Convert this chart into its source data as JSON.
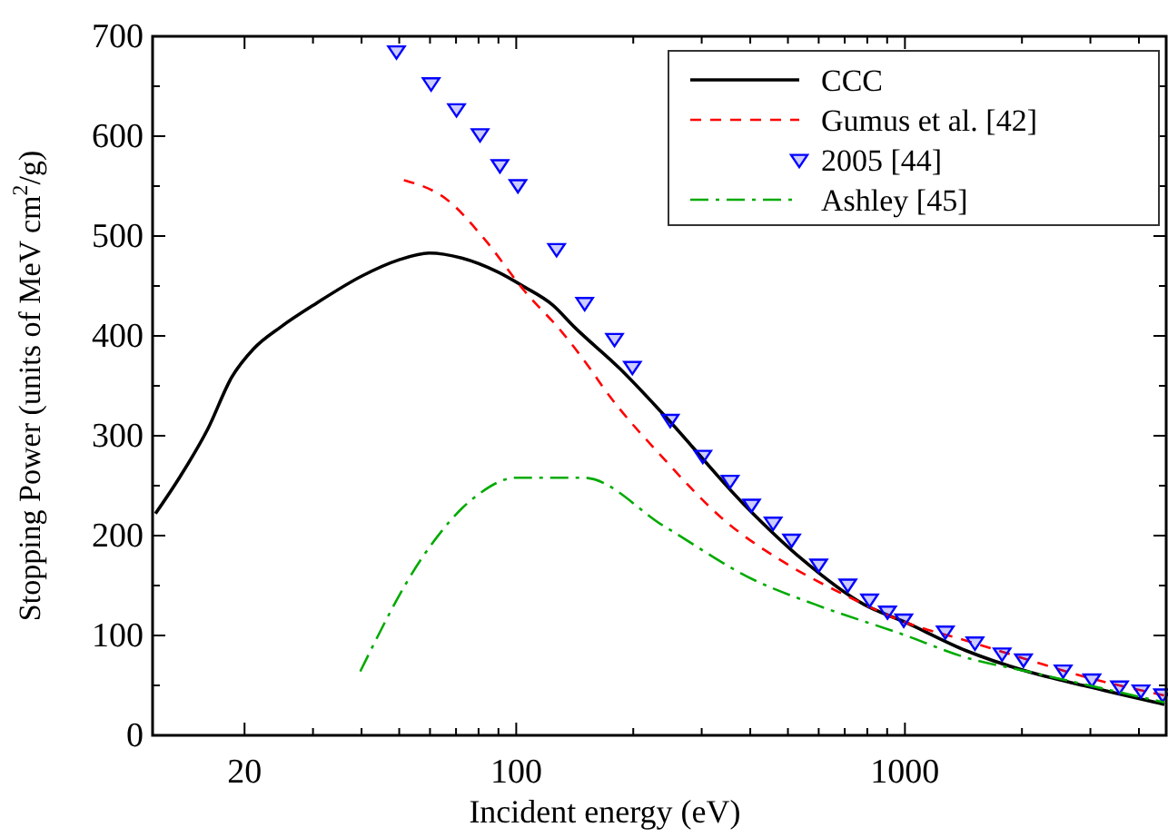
{
  "chart_data": {
    "type": "line",
    "xlabel": "Incident energy (eV)",
    "ylabel": "Stopping Power (units of MeV cm$^{2}$/g)",
    "log": "x",
    "xlim": [
      11.6,
      4700
    ],
    "ylim": [
      0,
      700
    ],
    "xticks": [
      20,
      {
        "value": 30,
        "label": null
      },
      {
        "value": 40,
        "label": null
      },
      {
        "value": 50,
        "label": null
      },
      {
        "value": 60,
        "label": null
      },
      {
        "value": 70,
        "label": null
      },
      {
        "value": 80,
        "label": null
      },
      {
        "value": 90,
        "label": null
      },
      100,
      {
        "value": 200,
        "label": null
      },
      {
        "value": 300,
        "label": null
      },
      {
        "value": 400,
        "label": null
      },
      {
        "value": 500,
        "label": null
      },
      {
        "value": 600,
        "label": null
      },
      {
        "value": 700,
        "label": null
      },
      {
        "value": 800,
        "label": null
      },
      {
        "value": 900,
        "label": null
      },
      1000,
      {
        "value": 2000,
        "label": null
      },
      {
        "value": 3000,
        "label": null
      },
      {
        "value": 4000,
        "label": null
      }
    ],
    "yticks": [
      0,
      100,
      200,
      300,
      400,
      500,
      600,
      700
    ],
    "grid": false,
    "legend": "top right",
    "series": [
      {
        "name": "CCC",
        "color": "#000000",
        "line_style": "solid",
        "x": [
          11.8,
          13.7,
          16.1,
          18.5,
          21.1,
          24.8,
          30.7,
          40.1,
          49.8,
          59.7,
          72.4,
          89.7,
          105,
          124,
          141,
          185,
          241,
          386,
          545,
          785,
          1005,
          1432,
          2061,
          2939,
          4650
        ],
        "values": [
          222,
          260,
          307,
          358,
          387,
          409,
          433,
          460,
          476,
          483,
          478,
          464,
          449,
          431,
          409,
          367,
          320,
          231,
          176,
          131,
          113,
          85,
          64,
          49,
          31
        ]
      },
      {
        "name": "Gumus et al. [42]",
        "color": "#ff0000",
        "line_style": "dashed",
        "x": [
          51.4,
          66.6,
          82.4,
          105,
          131,
          157,
          167,
          241,
          344,
          490,
          705,
          1005,
          1432,
          2061,
          2939,
          4650
        ],
        "values": [
          556,
          536,
          498,
          445,
          404,
          364,
          349,
          276,
          215,
          173,
          140,
          113,
          95,
          76,
          58,
          40
        ]
      },
      {
        "name": "2005 [44]",
        "color": "#0000ff",
        "type": "scatter",
        "marker": "triangle",
        "x": [
          49.2,
          60.4,
          70.2,
          80.7,
          90.8,
          101,
          127,
          150,
          179,
          199,
          249,
          302,
          355,
          403,
          458,
          511,
          600,
          713,
          811,
          902,
          993,
          1270,
          1514,
          1778,
          2018,
          2553,
          3027,
          3565,
          4047,
          4602
        ],
        "values": [
          685,
          653,
          627,
          602,
          571,
          551,
          487,
          433,
          397,
          369,
          316,
          280,
          255,
          231,
          213,
          196,
          171,
          151,
          136,
          124,
          116,
          104,
          93,
          82,
          76,
          65,
          56,
          49,
          45,
          41
        ]
      },
      {
        "name": "Ashley [45]",
        "color": "#00aa00",
        "line_style": "dashdot",
        "x": [
          39.7,
          57.3,
          79.1,
          100,
          149,
          241,
          412,
          588,
          1005,
          1432,
          2061,
          4650
        ],
        "values": [
          64,
          178,
          240,
          258,
          258,
          209,
          155,
          131,
          100,
          78,
          64,
          33
        ]
      }
    ]
  }
}
